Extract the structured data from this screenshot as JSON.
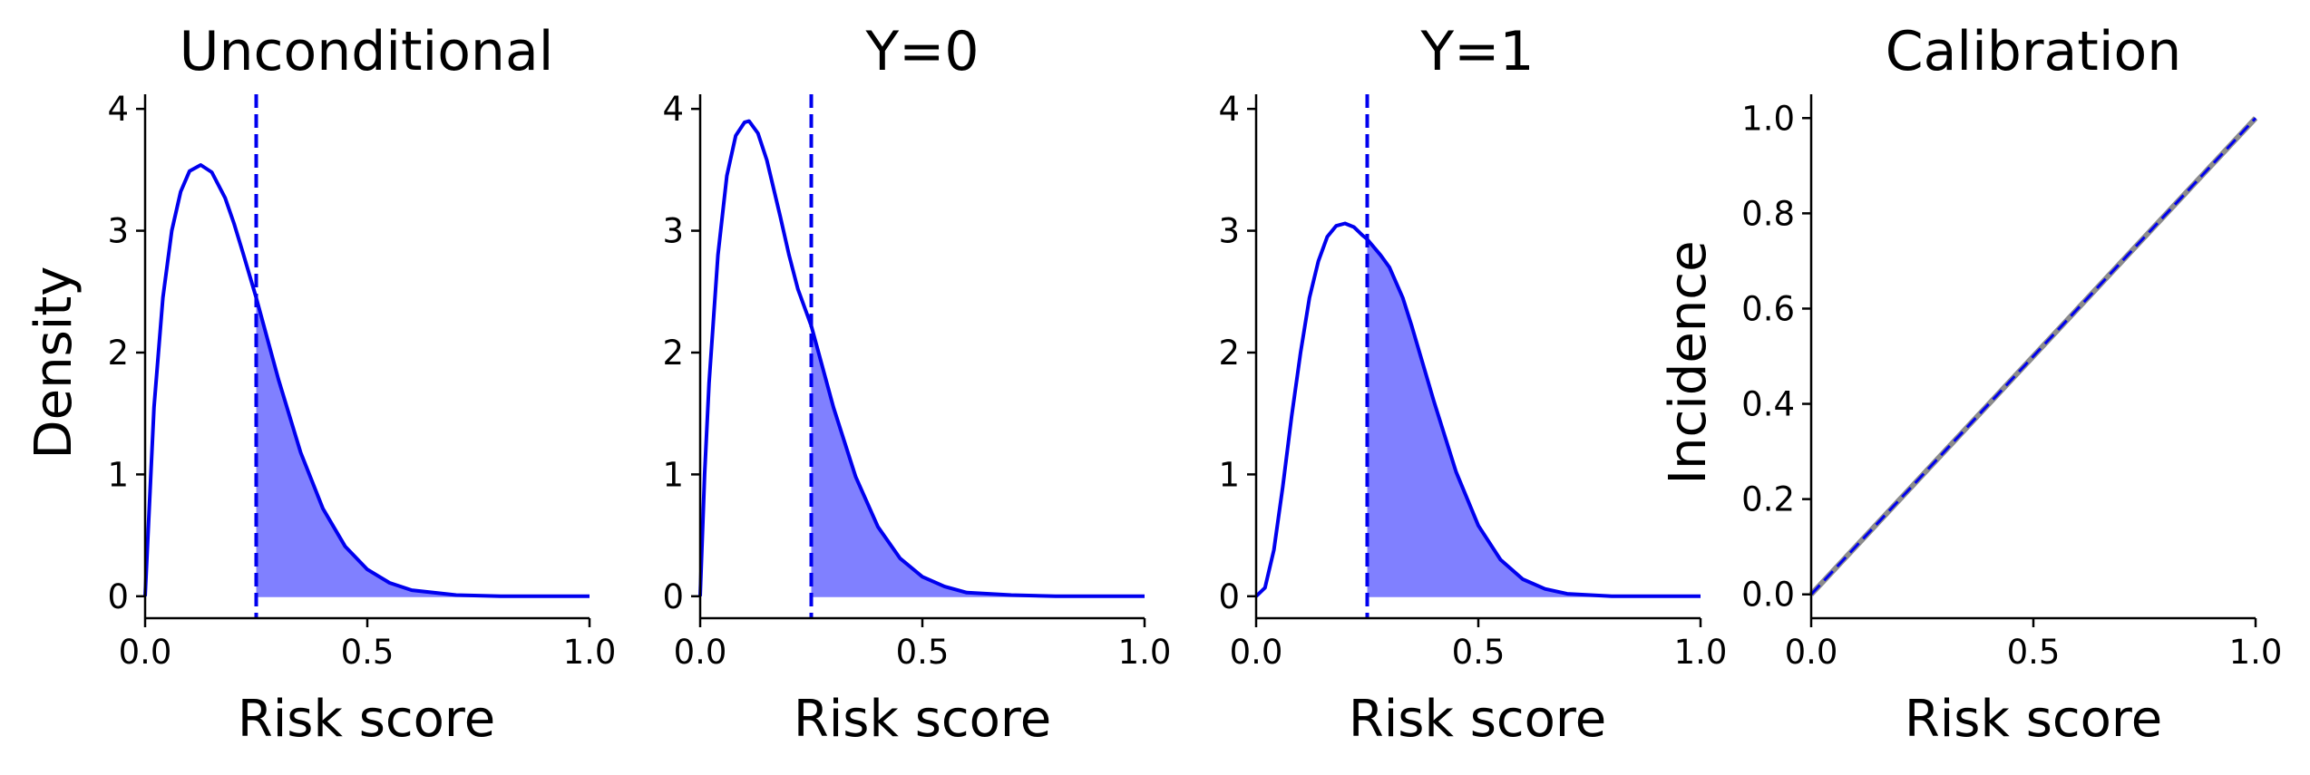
{
  "colors": {
    "series": "#0000ee",
    "fill": "#8080ff",
    "reference": "#8c8c8c",
    "axis": "#000000"
  },
  "chart_data": [
    {
      "type": "line",
      "title": "Unconditional",
      "xlabel": "Risk score",
      "ylabel": "Density",
      "xlim": [
        0,
        1
      ],
      "ylim": [
        -0.18,
        4.12
      ],
      "xticks": [
        0,
        0.5,
        1
      ],
      "xtick_labels": [
        "0.0",
        "0.5",
        "1.0"
      ],
      "yticks": [
        0,
        1,
        2,
        3,
        4
      ],
      "ytick_labels": [
        "0",
        "1",
        "2",
        "3",
        "4"
      ],
      "threshold": 0.25,
      "grid": false,
      "series": [
        {
          "x": [
            0,
            0.02,
            0.04,
            0.06,
            0.08,
            0.1,
            0.125,
            0.15,
            0.18,
            0.2,
            0.22,
            0.25,
            0.3,
            0.35,
            0.4,
            0.45,
            0.5,
            0.55,
            0.6,
            0.7,
            0.8,
            0.9,
            1.0
          ],
          "y": [
            0,
            1.55,
            2.45,
            3.0,
            3.32,
            3.49,
            3.54,
            3.48,
            3.27,
            3.06,
            2.82,
            2.45,
            1.78,
            1.18,
            0.72,
            0.41,
            0.22,
            0.11,
            0.05,
            0.01,
            0,
            0,
            0
          ]
        }
      ]
    },
    {
      "type": "line",
      "title": "Y=0",
      "xlabel": "Risk score",
      "ylabel": "",
      "xlim": [
        0,
        1
      ],
      "ylim": [
        -0.18,
        4.12
      ],
      "xticks": [
        0,
        0.5,
        1
      ],
      "xtick_labels": [
        "0.0",
        "0.5",
        "1.0"
      ],
      "yticks": [
        0,
        1,
        2,
        3,
        4
      ],
      "ytick_labels": [
        "0",
        "1",
        "2",
        "3",
        "4"
      ],
      "threshold": 0.25,
      "grid": false,
      "series": [
        {
          "x": [
            0,
            0.01,
            0.02,
            0.04,
            0.06,
            0.08,
            0.1,
            0.11,
            0.13,
            0.15,
            0.18,
            0.2,
            0.22,
            0.25,
            0.3,
            0.35,
            0.4,
            0.45,
            0.5,
            0.55,
            0.6,
            0.7,
            0.8,
            0.9,
            1.0
          ],
          "y": [
            0,
            1.0,
            1.75,
            2.8,
            3.45,
            3.78,
            3.89,
            3.9,
            3.8,
            3.58,
            3.12,
            2.8,
            2.52,
            2.22,
            1.55,
            0.98,
            0.57,
            0.31,
            0.16,
            0.08,
            0.03,
            0.01,
            0,
            0,
            0
          ]
        }
      ]
    },
    {
      "type": "line",
      "title": "Y=1",
      "xlabel": "Risk score",
      "ylabel": "",
      "xlim": [
        0,
        1
      ],
      "ylim": [
        -0.18,
        4.12
      ],
      "xticks": [
        0,
        0.5,
        1
      ],
      "xtick_labels": [
        "0.0",
        "0.5",
        "1.0"
      ],
      "yticks": [
        0,
        1,
        2,
        3,
        4
      ],
      "ytick_labels": [
        "0",
        "1",
        "2",
        "3",
        "4"
      ],
      "threshold": 0.25,
      "grid": false,
      "series": [
        {
          "x": [
            0,
            0.02,
            0.04,
            0.06,
            0.08,
            0.1,
            0.12,
            0.14,
            0.16,
            0.18,
            0.2,
            0.22,
            0.24,
            0.25,
            0.28,
            0.3,
            0.33,
            0.35,
            0.4,
            0.45,
            0.5,
            0.55,
            0.6,
            0.65,
            0.7,
            0.8,
            0.9,
            1.0
          ],
          "y": [
            0,
            0.07,
            0.38,
            0.9,
            1.48,
            2.0,
            2.45,
            2.75,
            2.95,
            3.04,
            3.06,
            3.03,
            2.96,
            2.93,
            2.8,
            2.7,
            2.45,
            2.22,
            1.6,
            1.02,
            0.58,
            0.3,
            0.14,
            0.06,
            0.02,
            0,
            0,
            0
          ]
        }
      ]
    },
    {
      "type": "line",
      "title": "Calibration",
      "xlabel": "Risk score",
      "ylabel": "Incidence",
      "xlim": [
        0,
        1
      ],
      "ylim": [
        -0.05,
        1.05
      ],
      "xticks": [
        0,
        0.5,
        1
      ],
      "xtick_labels": [
        "0.0",
        "0.5",
        "1.0"
      ],
      "yticks": [
        0,
        0.2,
        0.4,
        0.6,
        0.8,
        1.0
      ],
      "ytick_labels": [
        "0.0",
        "0.2",
        "0.4",
        "0.6",
        "0.8",
        "1.0"
      ],
      "grid": false,
      "series": [
        {
          "style": "solid-gray",
          "x": [
            0,
            1
          ],
          "y": [
            0,
            1
          ]
        },
        {
          "style": "dashed-blue",
          "x": [
            0,
            1
          ],
          "y": [
            0,
            1
          ]
        }
      ]
    }
  ]
}
